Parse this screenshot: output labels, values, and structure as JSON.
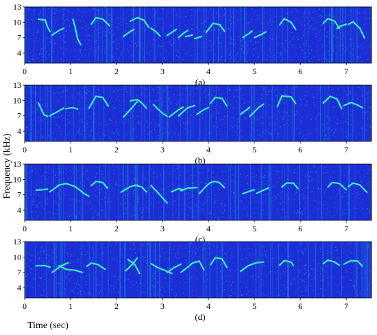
{
  "figure": {
    "ylabel": "Frequency (kHz)",
    "xlabel": "Time (sec)",
    "colors": {
      "background": "#1c2fd6",
      "noise": "#1e8fe0",
      "trace": "#38f0b8"
    }
  },
  "chart_data": [
    {
      "type": "heatmap",
      "panel": "(a)",
      "caption": "(a)",
      "xlim": [
        0,
        7.55
      ],
      "ylim": [
        2,
        13
      ],
      "xticks": [
        "0",
        "1",
        "2",
        "3",
        "4",
        "5",
        "6",
        "7"
      ],
      "yticks": [
        "4",
        "7",
        "10",
        "13"
      ],
      "grid": false,
      "syllables": [
        [
          [
            0.3,
            10.6
          ],
          [
            0.45,
            10.4
          ]
        ],
        [
          [
            0.45,
            10.4
          ],
          [
            0.5,
            9.0
          ],
          [
            0.55,
            8.2
          ]
        ],
        [
          [
            0.6,
            7.5
          ],
          [
            0.75,
            8.4
          ],
          [
            0.85,
            8.8
          ]
        ],
        [
          [
            1.05,
            10.6
          ],
          [
            1.1,
            9.0
          ],
          [
            1.15,
            6.8
          ],
          [
            1.22,
            5.6
          ]
        ],
        [
          [
            1.45,
            9.6
          ],
          [
            1.55,
            10.9
          ],
          [
            1.7,
            10.6
          ],
          [
            1.85,
            9.3
          ]
        ],
        [
          [
            2.15,
            7.2
          ],
          [
            2.3,
            8.2
          ],
          [
            2.38,
            8.6
          ]
        ],
        [
          [
            2.3,
            10.2
          ],
          [
            2.45,
            10.9
          ],
          [
            2.6,
            10.4
          ],
          [
            2.7,
            9.0
          ]
        ],
        [
          [
            2.75,
            8.8
          ],
          [
            2.85,
            8.2
          ],
          [
            2.95,
            7.3
          ]
        ],
        [
          [
            3.1,
            7.4
          ],
          [
            3.25,
            8.3
          ],
          [
            3.3,
            8.6
          ]
        ],
        [
          [
            3.35,
            7.0
          ],
          [
            3.45,
            7.8
          ],
          [
            3.55,
            8.4
          ]
        ],
        [
          [
            3.5,
            7.2
          ],
          [
            3.65,
            7.5
          ]
        ],
        [
          [
            3.7,
            6.8
          ],
          [
            3.85,
            7.2
          ]
        ],
        [
          [
            3.95,
            8.0
          ],
          [
            4.1,
            9.8
          ],
          [
            4.25,
            9.5
          ],
          [
            4.35,
            8.2
          ]
        ],
        [
          [
            4.75,
            7.0
          ],
          [
            4.9,
            7.9
          ],
          [
            4.95,
            8.3
          ]
        ],
        [
          [
            5.0,
            7.0
          ],
          [
            5.15,
            7.6
          ],
          [
            5.25,
            8.1
          ]
        ],
        [
          [
            5.55,
            9.5
          ],
          [
            5.65,
            10.7
          ],
          [
            5.8,
            10.0
          ],
          [
            5.9,
            8.6
          ]
        ],
        [
          [
            6.5,
            9.8
          ],
          [
            6.6,
            10.7
          ],
          [
            6.75,
            10.2
          ],
          [
            6.85,
            8.8
          ]
        ],
        [
          [
            6.8,
            8.8
          ],
          [
            6.9,
            9.3
          ],
          [
            7.0,
            9.6
          ]
        ],
        [
          [
            7.05,
            9.6
          ],
          [
            7.15,
            10.1
          ],
          [
            7.3,
            8.8
          ],
          [
            7.4,
            6.9
          ]
        ]
      ]
    },
    {
      "type": "heatmap",
      "panel": "(b)",
      "caption": "(b)",
      "xlim": [
        0,
        7.55
      ],
      "ylim": [
        2,
        13
      ],
      "xticks": [
        "0",
        "1",
        "2",
        "3",
        "4",
        "5",
        "6",
        "7"
      ],
      "yticks": [
        "4",
        "7",
        "10",
        "13"
      ],
      "grid": false,
      "syllables": [
        [
          [
            0.3,
            9.5
          ],
          [
            0.35,
            8.5
          ],
          [
            0.42,
            7.2
          ],
          [
            0.5,
            6.9
          ]
        ],
        [
          [
            0.55,
            7.0
          ],
          [
            0.75,
            8.0
          ],
          [
            0.85,
            8.5
          ]
        ],
        [
          [
            0.9,
            8.4
          ],
          [
            1.05,
            8.6
          ],
          [
            1.15,
            8.3
          ]
        ],
        [
          [
            1.4,
            8.5
          ],
          [
            1.55,
            10.8
          ],
          [
            1.7,
            10.6
          ],
          [
            1.82,
            8.9
          ]
        ],
        [
          [
            2.15,
            6.8
          ],
          [
            2.35,
            8.7
          ],
          [
            2.45,
            9.8
          ]
        ],
        [
          [
            2.3,
            9.9
          ],
          [
            2.45,
            10.2
          ],
          [
            2.55,
            9.5
          ],
          [
            2.65,
            8.5
          ]
        ],
        [
          [
            2.8,
            9.2
          ],
          [
            3.0,
            7.5
          ],
          [
            3.1,
            6.9
          ]
        ],
        [
          [
            3.15,
            6.8
          ],
          [
            3.35,
            8.2
          ],
          [
            3.45,
            8.7
          ]
        ],
        [
          [
            3.35,
            7.0
          ],
          [
            3.55,
            8.6
          ],
          [
            3.7,
            9.0
          ]
        ],
        [
          [
            3.75,
            7.3
          ],
          [
            3.9,
            8.2
          ],
          [
            4.0,
            8.6
          ]
        ],
        [
          [
            4.05,
            9.5
          ],
          [
            4.15,
            10.6
          ],
          [
            4.3,
            10.4
          ],
          [
            4.4,
            8.9
          ]
        ],
        [
          [
            4.7,
            7.3
          ],
          [
            4.85,
            8.3
          ],
          [
            4.9,
            8.7
          ]
        ],
        [
          [
            4.9,
            6.9
          ],
          [
            5.1,
            8.7
          ],
          [
            5.2,
            9.3
          ]
        ],
        [
          [
            5.5,
            8.8
          ],
          [
            5.6,
            10.9
          ],
          [
            5.8,
            10.7
          ],
          [
            5.9,
            9.4
          ]
        ],
        [
          [
            6.5,
            9.5
          ],
          [
            6.65,
            10.8
          ],
          [
            6.8,
            10.3
          ],
          [
            6.9,
            8.4
          ]
        ],
        [
          [
            6.95,
            9.0
          ],
          [
            7.1,
            9.6
          ],
          [
            7.25,
            9.1
          ],
          [
            7.35,
            8.6
          ]
        ]
      ]
    },
    {
      "type": "heatmap",
      "panel": "(c)",
      "caption": "(c)",
      "xlim": [
        0,
        7.55
      ],
      "ylim": [
        2,
        13
      ],
      "xticks": [
        "0",
        "1",
        "2",
        "3",
        "4",
        "5",
        "6",
        "7"
      ],
      "yticks": [
        "4",
        "7",
        "10",
        "13"
      ],
      "grid": false,
      "syllables": [
        [
          [
            0.25,
            7.9
          ],
          [
            0.4,
            8.0
          ],
          [
            0.5,
            8.1
          ]
        ],
        [
          [
            0.55,
            7.6
          ],
          [
            0.75,
            8.9
          ],
          [
            0.9,
            9.2
          ],
          [
            1.1,
            8.6
          ],
          [
            1.3,
            7.2
          ],
          [
            1.4,
            6.7
          ]
        ],
        [
          [
            1.45,
            8.8
          ],
          [
            1.55,
            9.6
          ],
          [
            1.7,
            9.4
          ],
          [
            1.8,
            8.3
          ]
        ],
        [
          [
            2.1,
            7.5
          ],
          [
            2.3,
            8.6
          ],
          [
            2.45,
            8.9
          ]
        ],
        [
          [
            2.4,
            8.9
          ],
          [
            2.55,
            8.5
          ],
          [
            2.65,
            7.6
          ]
        ],
        [
          [
            2.75,
            8.8
          ],
          [
            2.9,
            7.4
          ],
          [
            3.1,
            5.4
          ]
        ],
        [
          [
            3.2,
            7.6
          ],
          [
            3.35,
            8.2
          ],
          [
            3.45,
            8.0
          ]
        ],
        [
          [
            3.4,
            7.8
          ],
          [
            3.55,
            8.3
          ],
          [
            3.75,
            8.4
          ]
        ],
        [
          [
            3.8,
            7.2
          ],
          [
            3.95,
            8.7
          ],
          [
            4.05,
            9.4
          ]
        ],
        [
          [
            4.05,
            9.4
          ],
          [
            4.15,
            9.6
          ],
          [
            4.25,
            9.3
          ],
          [
            4.35,
            8.4
          ]
        ],
        [
          [
            4.75,
            7.2
          ],
          [
            4.9,
            7.7
          ],
          [
            5.0,
            8.0
          ]
        ],
        [
          [
            5.05,
            7.3
          ],
          [
            5.2,
            7.9
          ],
          [
            5.3,
            8.3
          ]
        ],
        [
          [
            5.6,
            8.5
          ],
          [
            5.7,
            9.3
          ],
          [
            5.85,
            9.3
          ],
          [
            5.95,
            8.2
          ]
        ],
        [
          [
            6.6,
            8.5
          ],
          [
            6.7,
            9.4
          ],
          [
            6.85,
            9.2
          ],
          [
            7.0,
            8.0
          ]
        ],
        [
          [
            7.05,
            8.6
          ],
          [
            7.15,
            9.3
          ],
          [
            7.3,
            8.9
          ],
          [
            7.45,
            7.5
          ]
        ]
      ]
    },
    {
      "type": "heatmap",
      "panel": "(d)",
      "caption": "(d)",
      "xlim": [
        0,
        7.55
      ],
      "ylim": [
        2,
        13
      ],
      "xticks": [
        "0",
        "1",
        "2",
        "3",
        "4",
        "5",
        "6",
        "7"
      ],
      "yticks": [
        "4",
        "7",
        "10",
        "13"
      ],
      "grid": false,
      "syllables": [
        [
          [
            0.25,
            8.3
          ],
          [
            0.45,
            8.3
          ],
          [
            0.55,
            8.0
          ]
        ],
        [
          [
            0.6,
            7.0
          ],
          [
            0.8,
            8.3
          ],
          [
            0.95,
            8.9
          ]
        ],
        [
          [
            0.75,
            8.3
          ],
          [
            0.9,
            7.6
          ],
          [
            1.1,
            7.4
          ],
          [
            1.25,
            7.0
          ]
        ],
        [
          [
            1.35,
            8.2
          ],
          [
            1.45,
            8.8
          ],
          [
            1.6,
            8.5
          ],
          [
            1.75,
            7.6
          ]
        ],
        [
          [
            2.2,
            7.3
          ],
          [
            2.35,
            8.6
          ],
          [
            2.45,
            9.8
          ]
        ],
        [
          [
            2.25,
            9.5
          ],
          [
            2.4,
            8.5
          ],
          [
            2.5,
            6.8
          ]
        ],
        [
          [
            2.75,
            8.7
          ],
          [
            2.9,
            7.9
          ],
          [
            3.05,
            7.4
          ],
          [
            3.2,
            6.8
          ]
        ],
        [
          [
            3.1,
            7.0
          ],
          [
            3.25,
            7.9
          ],
          [
            3.4,
            8.6
          ]
        ],
        [
          [
            3.4,
            7.0
          ],
          [
            3.55,
            8.0
          ],
          [
            3.65,
            8.8
          ]
        ],
        [
          [
            3.65,
            8.8
          ],
          [
            3.8,
            9.2
          ],
          [
            3.9,
            7.5
          ]
        ],
        [
          [
            4.05,
            8.5
          ],
          [
            4.15,
            9.9
          ],
          [
            4.3,
            9.6
          ],
          [
            4.4,
            8.0
          ]
        ],
        [
          [
            4.7,
            7.2
          ],
          [
            4.85,
            8.2
          ],
          [
            4.95,
            8.6
          ]
        ],
        [
          [
            4.9,
            8.4
          ],
          [
            5.05,
            8.9
          ],
          [
            5.2,
            9.0
          ]
        ],
        [
          [
            5.55,
            8.4
          ],
          [
            5.65,
            9.3
          ],
          [
            5.8,
            9.0
          ],
          [
            5.85,
            8.3
          ]
        ],
        [
          [
            6.5,
            8.7
          ],
          [
            6.6,
            9.4
          ],
          [
            6.75,
            9.0
          ],
          [
            6.85,
            8.4
          ]
        ],
        [
          [
            6.95,
            8.6
          ],
          [
            7.1,
            9.3
          ],
          [
            7.25,
            9.2
          ],
          [
            7.35,
            8.2
          ]
        ]
      ]
    }
  ]
}
